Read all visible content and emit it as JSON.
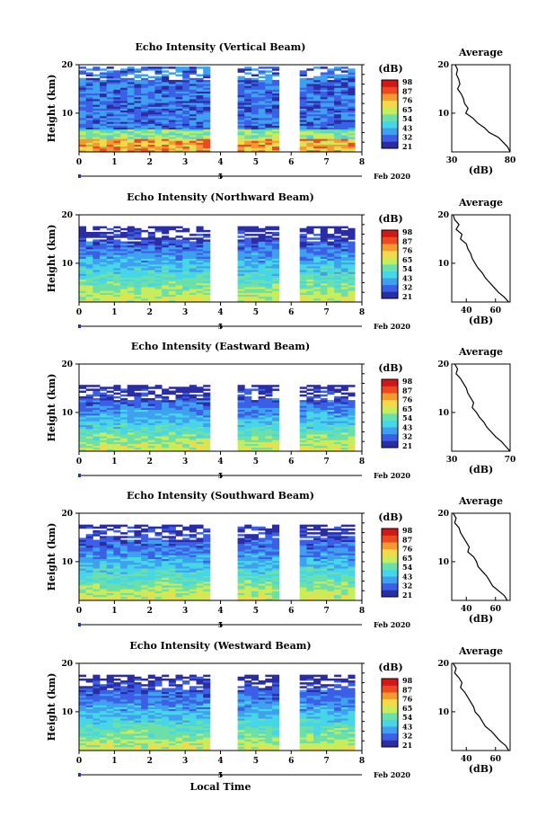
{
  "colorbar": {
    "unit": "(dB)",
    "ticks": [
      "98",
      "87",
      "76",
      "65",
      "54",
      "43",
      "32",
      "21"
    ],
    "colors": [
      "#2a2da4",
      "#3b5fe6",
      "#3fa0f0",
      "#46d6e8",
      "#6be0a8",
      "#c8ec5a",
      "#f6d84a",
      "#f59a2e",
      "#ee4a22",
      "#d01818"
    ]
  },
  "xaxis": {
    "ticks": [
      "0",
      "1",
      "2",
      "3",
      "4",
      "5",
      "6",
      "7",
      "8"
    ],
    "date_tick": "5",
    "date_label": "Feb 2020",
    "xlabel": "Local Time"
  },
  "profile": {
    "title": "Average",
    "xlabel": "(dB)"
  },
  "colors": {
    "profile_line": "#000000",
    "axis": "#000000"
  },
  "chart_data": [
    {
      "type": "heatmap",
      "title": "Echo Intensity (Vertical Beam)",
      "ylabel": "Height (km)",
      "xlabel": "Local Time",
      "x_range": [
        0,
        8
      ],
      "y_range": [
        2,
        20
      ],
      "y_ticks": [
        "20",
        "10"
      ],
      "data_gaps_hours": [
        [
          3.7,
          4.4
        ],
        [
          5.6,
          6.2
        ]
      ],
      "z_range_db": [
        21,
        98
      ],
      "profile": {
        "xlim": [
          30,
          80
        ],
        "x_ticks": [
          "30",
          "80"
        ],
        "y_ticks": [
          "20",
          "10"
        ],
        "points": [
          [
            33,
            20
          ],
          [
            35,
            19
          ],
          [
            34,
            18
          ],
          [
            36,
            17
          ],
          [
            37,
            16
          ],
          [
            35,
            15
          ],
          [
            38,
            14
          ],
          [
            40,
            13
          ],
          [
            41,
            12
          ],
          [
            44,
            11
          ],
          [
            42,
            10
          ],
          [
            48,
            9
          ],
          [
            52,
            8
          ],
          [
            58,
            7
          ],
          [
            62,
            6
          ],
          [
            70,
            5
          ],
          [
            74,
            4
          ],
          [
            78,
            3
          ],
          [
            80,
            2
          ]
        ]
      }
    },
    {
      "type": "heatmap",
      "title": "Echo Intensity (Northward Beam)",
      "ylabel": "Height (km)",
      "xlabel": "Local Time",
      "x_range": [
        0,
        8
      ],
      "y_range": [
        2,
        20
      ],
      "y_ticks": [
        "20",
        "10"
      ],
      "data_gaps_hours": [
        [
          3.7,
          4.4
        ],
        [
          5.6,
          6.2
        ]
      ],
      "z_range_db": [
        21,
        98
      ],
      "profile": {
        "xlim": [
          30,
          70
        ],
        "x_ticks": [
          "40",
          "60"
        ],
        "y_ticks": [
          "20",
          "10"
        ],
        "points": [
          [
            31,
            20
          ],
          [
            32,
            19
          ],
          [
            35,
            18
          ],
          [
            33,
            17
          ],
          [
            37,
            16
          ],
          [
            36,
            15
          ],
          [
            40,
            14
          ],
          [
            41,
            13
          ],
          [
            43,
            12
          ],
          [
            44,
            11
          ],
          [
            46,
            10
          ],
          [
            48,
            9
          ],
          [
            51,
            8
          ],
          [
            53,
            7
          ],
          [
            56,
            6
          ],
          [
            59,
            5
          ],
          [
            62,
            4
          ],
          [
            66,
            3
          ],
          [
            69,
            2
          ]
        ]
      }
    },
    {
      "type": "heatmap",
      "title": "Echo Intensity (Eastward Beam)",
      "ylabel": "Height (km)",
      "xlabel": "Local Time",
      "x_range": [
        0,
        8
      ],
      "y_range": [
        2,
        20
      ],
      "y_ticks": [
        "20",
        "10"
      ],
      "data_gaps_hours": [
        [
          3.7,
          4.4
        ],
        [
          5.6,
          6.2
        ]
      ],
      "z_range_db": [
        21,
        98
      ],
      "profile": {
        "xlim": [
          30,
          70
        ],
        "x_ticks": [
          "30",
          "70"
        ],
        "y_ticks": [
          "20",
          "10"
        ],
        "points": [
          [
            32,
            20
          ],
          [
            34,
            19
          ],
          [
            33,
            18
          ],
          [
            36,
            17
          ],
          [
            38,
            16
          ],
          [
            40,
            15
          ],
          [
            41,
            14
          ],
          [
            43,
            13
          ],
          [
            45,
            12
          ],
          [
            44,
            11
          ],
          [
            47,
            10
          ],
          [
            49,
            9
          ],
          [
            52,
            8
          ],
          [
            54,
            7
          ],
          [
            57,
            6
          ],
          [
            60,
            5
          ],
          [
            64,
            4
          ],
          [
            67,
            3
          ],
          [
            70,
            2
          ]
        ]
      }
    },
    {
      "type": "heatmap",
      "title": "Echo Intensity (Southward Beam)",
      "ylabel": "Height (km)",
      "xlabel": "Local Time",
      "x_range": [
        0,
        8
      ],
      "y_range": [
        2,
        20
      ],
      "y_ticks": [
        "20",
        "10"
      ],
      "data_gaps_hours": [
        [
          3.7,
          4.4
        ],
        [
          5.6,
          6.2
        ]
      ],
      "z_range_db": [
        21,
        98
      ],
      "profile": {
        "xlim": [
          30,
          70
        ],
        "x_ticks": [
          "40",
          "60"
        ],
        "y_ticks": [
          "20",
          "10"
        ],
        "points": [
          [
            31,
            20
          ],
          [
            33,
            19
          ],
          [
            32,
            18
          ],
          [
            35,
            17
          ],
          [
            36,
            16
          ],
          [
            38,
            15
          ],
          [
            40,
            14
          ],
          [
            42,
            13
          ],
          [
            41,
            12
          ],
          [
            45,
            11
          ],
          [
            47,
            10
          ],
          [
            48,
            9
          ],
          [
            51,
            8
          ],
          [
            54,
            7
          ],
          [
            56,
            6
          ],
          [
            58,
            5
          ],
          [
            62,
            4
          ],
          [
            66,
            3
          ],
          [
            68,
            2
          ]
        ]
      }
    },
    {
      "type": "heatmap",
      "title": "Echo Intensity (Westward Beam)",
      "ylabel": "Height (km)",
      "xlabel": "Local Time",
      "x_range": [
        0,
        8
      ],
      "y_range": [
        2,
        20
      ],
      "y_ticks": [
        "20",
        "10"
      ],
      "data_gaps_hours": [
        [
          3.7,
          4.4
        ],
        [
          5.6,
          6.2
        ]
      ],
      "z_range_db": [
        21,
        98
      ],
      "profile": {
        "xlim": [
          30,
          70
        ],
        "x_ticks": [
          "40",
          "60"
        ],
        "y_ticks": [
          "20",
          "10"
        ],
        "points": [
          [
            31,
            20
          ],
          [
            33,
            19
          ],
          [
            32,
            18
          ],
          [
            35,
            17
          ],
          [
            37,
            16
          ],
          [
            36,
            15
          ],
          [
            39,
            14
          ],
          [
            41,
            13
          ],
          [
            43,
            12
          ],
          [
            45,
            11
          ],
          [
            46,
            10
          ],
          [
            49,
            9
          ],
          [
            51,
            8
          ],
          [
            53,
            7
          ],
          [
            57,
            6
          ],
          [
            60,
            5
          ],
          [
            63,
            4
          ],
          [
            67,
            3
          ],
          [
            69,
            2
          ]
        ]
      }
    }
  ]
}
